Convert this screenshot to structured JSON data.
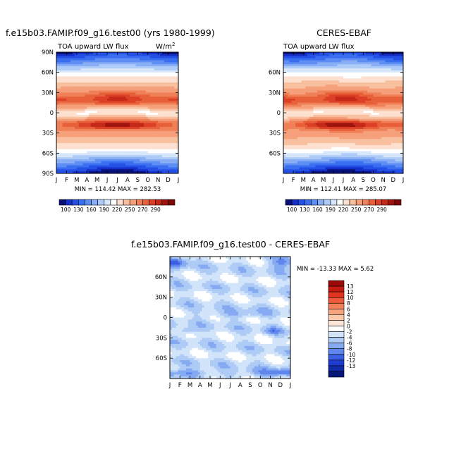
{
  "chart_data": [
    {
      "type": "heatmap",
      "title": "f.e15b03.FAMIP.f09_g16.test00 (yrs 1980-1999)",
      "subtitle": "TOA upward LW flux",
      "units": "W/m",
      "units_sup": "2",
      "x": [
        "J",
        "F",
        "M",
        "A",
        "M",
        "J",
        "J",
        "A",
        "S",
        "O",
        "N",
        "D",
        "J"
      ],
      "y_ticks": [
        "90N",
        "60N",
        "30N",
        "0",
        "30S",
        "60S",
        "90S"
      ],
      "y_range": [
        -90,
        90
      ],
      "stats": "MIN = 114.42  MAX = 282.53",
      "min": 114.42,
      "max": 282.53
    },
    {
      "type": "heatmap",
      "title": "CERES-EBAF",
      "subtitle": "TOA upward LW flux",
      "x": [
        "J",
        "F",
        "M",
        "A",
        "M",
        "J",
        "J",
        "A",
        "S",
        "O",
        "N",
        "D",
        "J"
      ],
      "y_ticks": [
        "",
        "60N",
        "30N",
        "0",
        "30S",
        "60S",
        ""
      ],
      "y_range": [
        -90,
        90
      ],
      "stats": "MIN = 112.41  MAX = 285.07",
      "min": 112.41,
      "max": 285.07
    },
    {
      "type": "heatmap",
      "title": "f.e15b03.FAMIP.f09_g16.test00 - CERES-EBAF",
      "x": [
        "J",
        "F",
        "M",
        "A",
        "M",
        "J",
        "J",
        "A",
        "S",
        "O",
        "N",
        "D",
        "J"
      ],
      "y_ticks": [
        "",
        "60N",
        "30N",
        "0",
        "30S",
        "60S",
        ""
      ],
      "y_range": [
        -90,
        90
      ],
      "stats": "MIN = -13.33  MAX =    5.62",
      "min": -13.33,
      "max": 5.62
    }
  ],
  "colorbar_abs": {
    "labels": [
      "100",
      "130",
      "160",
      "190",
      "220",
      "250",
      "270",
      "290"
    ],
    "colors": [
      "#08107a",
      "#1530c8",
      "#2450e6",
      "#3a6ef0",
      "#5e8ef4",
      "#88aef6",
      "#aecbf8",
      "#d6e6fb",
      "#ffffff",
      "#fde0cf",
      "#f9c0a0",
      "#f5a07a",
      "#ef8058",
      "#e8603a",
      "#dc4026",
      "#c42818",
      "#a01410",
      "#7a0a08"
    ]
  },
  "colorbar_diff": {
    "labels": [
      "13",
      "12",
      "10",
      "8",
      "6",
      "4",
      "2",
      "0",
      "-2",
      "-4",
      "-6",
      "-8",
      "-10",
      "-12",
      "-13"
    ],
    "colors": [
      "#9a0a08",
      "#c41a12",
      "#e23420",
      "#ee5a3a",
      "#f28058",
      "#f6a57e",
      "#fac8ab",
      "#fde6d8",
      "#ffffff",
      "#d2e4fa",
      "#aecbf6",
      "#86aaf2",
      "#5e86ec",
      "#3a5ee4",
      "#1f3cd0",
      "#102aa8",
      "#081878"
    ]
  }
}
